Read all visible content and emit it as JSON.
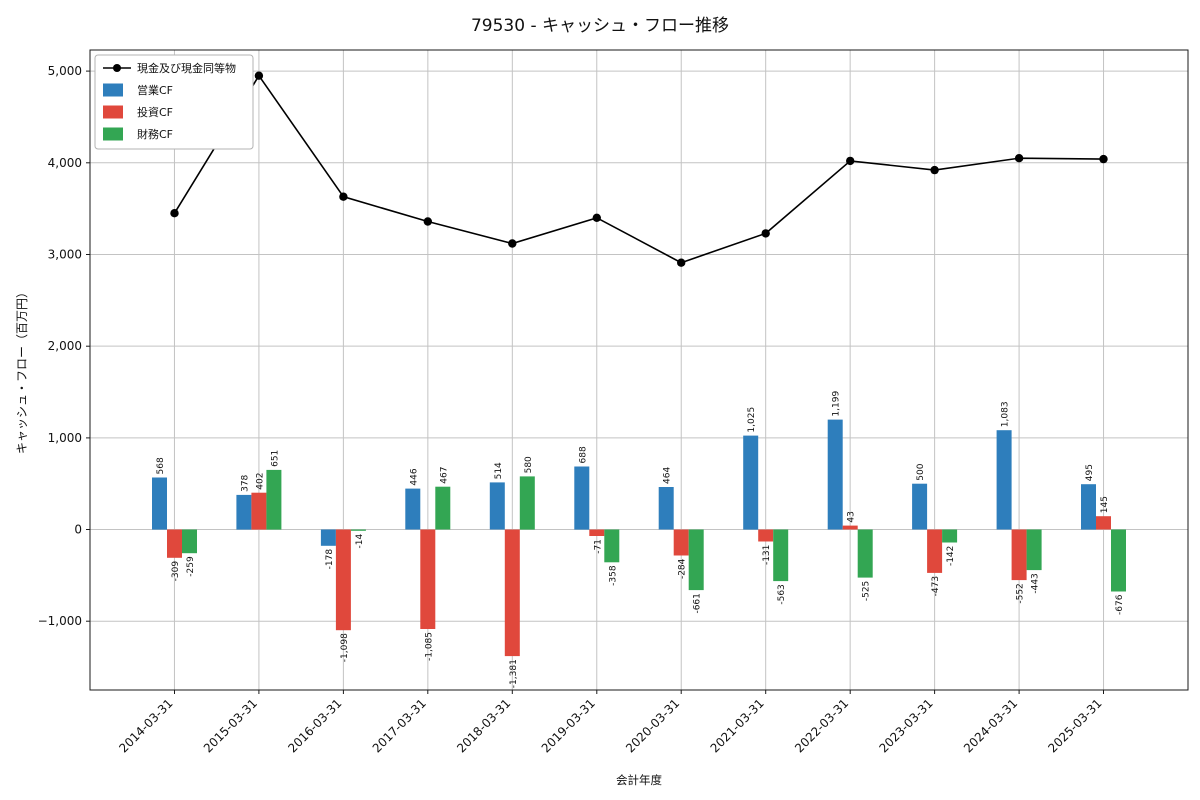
{
  "chart_data": {
    "type": "bar+line",
    "title": "79530 - キャッシュ・フロー推移",
    "xlabel": "会計年度",
    "ylabel": "キャッシュ・フロー（百万円）",
    "categories": [
      "2014-03-31",
      "2015-03-31",
      "2016-03-31",
      "2017-03-31",
      "2018-03-31",
      "2019-03-31",
      "2020-03-31",
      "2021-03-31",
      "2022-03-31",
      "2023-03-31",
      "2024-03-31",
      "2025-03-31"
    ],
    "series": [
      {
        "name": "現金及び現金同等物",
        "key": "cash-equivalents",
        "type": "line",
        "color": "#000000",
        "values": [
          3450,
          4950,
          3630,
          3360,
          3120,
          3400,
          2910,
          3230,
          4020,
          3920,
          4050,
          4040
        ]
      },
      {
        "name": "営業CF",
        "key": "operating-cf",
        "type": "bar",
        "color": "#2e7ebc",
        "values": [
          568,
          378,
          -178,
          446,
          514,
          688,
          464,
          1025,
          1199,
          500,
          1083,
          495
        ]
      },
      {
        "name": "投資CF",
        "key": "investing-cf",
        "type": "bar",
        "color": "#e0483c",
        "values": [
          -309,
          402,
          -1098,
          -1085,
          -1381,
          -71,
          -284,
          -131,
          43,
          -473,
          -552,
          145
        ]
      },
      {
        "name": "財務CF",
        "key": "financing-cf",
        "type": "bar",
        "color": "#33a653",
        "values": [
          -259,
          651,
          -14,
          467,
          580,
          -358,
          -661,
          -563,
          -525,
          -142,
          -443,
          -676
        ]
      }
    ],
    "ylim": [
      -1750,
      5230
    ],
    "yticks": [
      -1000,
      0,
      1000,
      2000,
      3000,
      4000,
      5000
    ],
    "grid": true,
    "legend_position": "upper left",
    "colors": {
      "grid": "#c3c3c3",
      "frame": "#1a1a1a",
      "text": "#111111",
      "legend_border": "#b3b3b3",
      "legend_bg": "#ffffff"
    }
  }
}
